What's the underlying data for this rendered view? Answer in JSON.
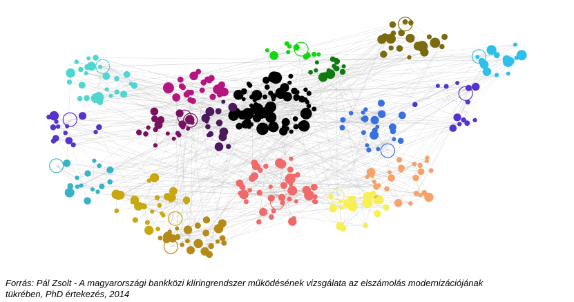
{
  "caption": {
    "line1": "Forrás: Pál Zsolt - A magyarországi bankközi klíringrendszer működésének  vizsgálata az elszámolás modernizációjának",
    "line2": "tükrében, PhD értekezés, 2014"
  },
  "network": {
    "edge_color": "#b4b4b4",
    "clusters": [
      {
        "name": "black",
        "color": "#000000"
      },
      {
        "name": "magenta",
        "color": "#b5167e"
      },
      {
        "name": "purple",
        "color": "#7a1060"
      },
      {
        "name": "dark-purple",
        "color": "#4a1a5c"
      },
      {
        "name": "cyan",
        "color": "#4fd6d0"
      },
      {
        "name": "teal",
        "color": "#36b3c6"
      },
      {
        "name": "blue-violet",
        "color": "#5533cc"
      },
      {
        "name": "blue",
        "color": "#3a6fe0"
      },
      {
        "name": "light-blue",
        "color": "#2fc0ea"
      },
      {
        "name": "green",
        "color": "#12d612"
      },
      {
        "name": "dark-green",
        "color": "#0f7a0f"
      },
      {
        "name": "olive",
        "color": "#7a6a10"
      },
      {
        "name": "salmon",
        "color": "#f06a6a"
      },
      {
        "name": "orange",
        "color": "#f5a36a"
      },
      {
        "name": "yellow",
        "color": "#f7f055"
      },
      {
        "name": "gold",
        "color": "#c8a810"
      },
      {
        "name": "dark-gold",
        "color": "#b58a18"
      }
    ]
  }
}
